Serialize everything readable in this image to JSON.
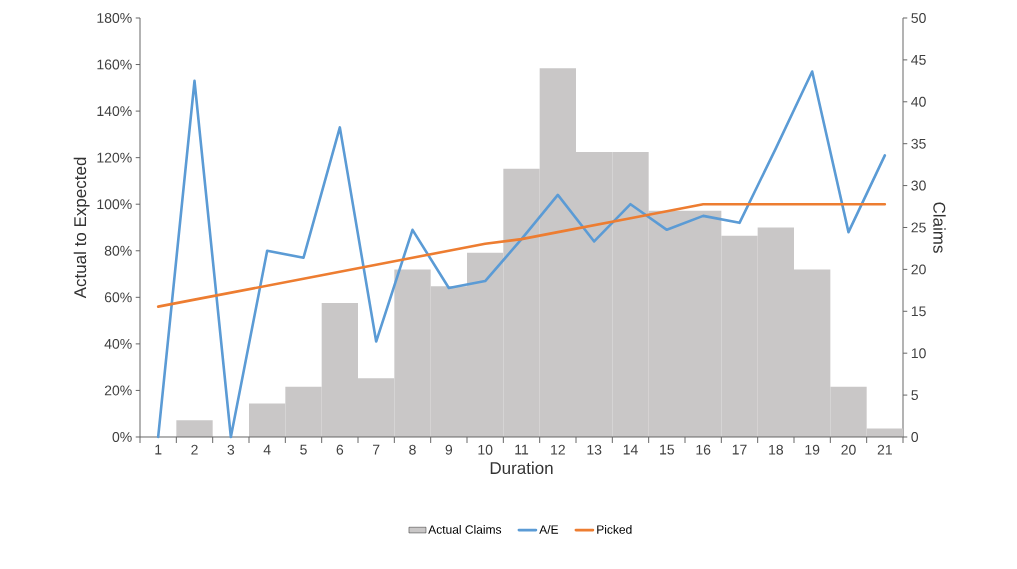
{
  "chart_data": {
    "type": "line",
    "xlabel": "Duration",
    "ylabel": "Actual to Expected",
    "y2label": "Claims",
    "categories": [
      "1",
      "2",
      "3",
      "4",
      "5",
      "6",
      "7",
      "8",
      "9",
      "10",
      "11",
      "12",
      "13",
      "14",
      "15",
      "16",
      "17",
      "18",
      "19",
      "20",
      "21"
    ],
    "series": [
      {
        "name": "Actual Claims",
        "type": "bar",
        "axis": "y2",
        "color": "#c9c7c7",
        "values": [
          0,
          2,
          0,
          4,
          6,
          16,
          7,
          20,
          18,
          22,
          32,
          44,
          34,
          34,
          27,
          27,
          24,
          25,
          20,
          6,
          1
        ]
      },
      {
        "name": "A/E",
        "color": "#5b9bd5",
        "values": [
          0,
          153,
          0,
          80,
          77,
          133,
          41,
          89,
          64,
          67,
          85,
          104,
          84,
          100,
          89,
          95,
          92,
          124,
          157,
          88,
          121
        ]
      },
      {
        "name": "Picked",
        "color": "#ed7d31",
        "values": [
          56,
          59,
          62,
          65,
          68,
          71,
          74,
          77,
          80,
          83,
          85,
          88,
          91,
          94,
          97,
          100,
          100,
          100,
          100,
          100,
          100
        ]
      }
    ],
    "ylim": [
      0,
      180
    ],
    "yticks": [
      {
        "value": 0,
        "label": "0%"
      },
      {
        "value": 20,
        "label": "20%"
      },
      {
        "value": 40,
        "label": "40%"
      },
      {
        "value": 60,
        "label": "60%"
      },
      {
        "value": 80,
        "label": "80%"
      },
      {
        "value": 100,
        "label": "100%"
      },
      {
        "value": 120,
        "label": "120%"
      },
      {
        "value": 140,
        "label": "140%"
      },
      {
        "value": 160,
        "label": "160%"
      },
      {
        "value": 180,
        "label": "180%"
      }
    ],
    "y2lim": [
      0,
      50
    ],
    "y2ticks": [
      0,
      5,
      10,
      15,
      20,
      25,
      30,
      35,
      40,
      45,
      50
    ],
    "legend": "bottom",
    "grid": false
  }
}
